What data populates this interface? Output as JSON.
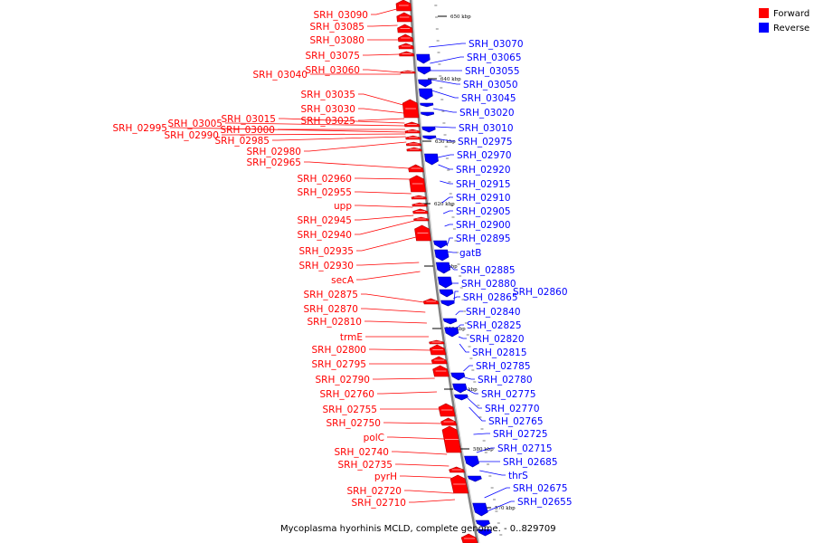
{
  "legend": [
    {
      "label": "Forward",
      "color": "#ff0000"
    },
    {
      "label": "Reverse",
      "color": "#0000ff"
    }
  ],
  "caption": "Mycoplasma hyorhinis MCLD, complete genome. - 0..829709",
  "forward_color": "#ff0000",
  "reverse_color": "#0000ff",
  "tick_labels": [
    "650 kbp",
    "640 kbp",
    "630 kbp",
    "620 kbp",
    "610 kbp",
    "600 kbp",
    "590 kbp",
    "580 kbp",
    "570 kbp"
  ],
  "forward_labels": [
    "SRH_03090",
    "SRH_03085",
    "SRH_03080",
    "SRH_03075",
    "SRH_03060",
    "SRH_03040",
    "SRH_03035",
    "SRH_03030",
    "SRH_03025",
    "SRH_03015",
    "SRH_03005",
    "SRH_03000",
    "SRH_02995",
    "SRH_02990",
    "SRH_02985",
    "SRH_02980",
    "SRH_02965",
    "SRH_02960",
    "SRH_02955",
    "upp",
    "SRH_02945",
    "SRH_02940",
    "SRH_02935",
    "SRH_02930",
    "secA",
    "SRH_02875",
    "SRH_02870",
    "SRH_02810",
    "trmE",
    "SRH_02800",
    "SRH_02795",
    "SRH_02790",
    "SRH_02760",
    "SRH_02755",
    "SRH_02750",
    "polC",
    "SRH_02740",
    "SRH_02735",
    "pyrH",
    "SRH_02720",
    "SRH_02710"
  ],
  "reverse_labels": [
    "SRH_03070",
    "SRH_03065",
    "SRH_03055",
    "SRH_03050",
    "SRH_03045",
    "SRH_03020",
    "SRH_03010",
    "SRH_02975",
    "SRH_02970",
    "SRH_02920",
    "SRH_02915",
    "SRH_02910",
    "SRH_02905",
    "SRH_02900",
    "SRH_02895",
    "gatB",
    "SRH_02885",
    "SRH_02880",
    "SRH_02865",
    "SRH_02860",
    "SRH_02840",
    "SRH_02825",
    "SRH_02820",
    "SRH_02815",
    "SRH_02785",
    "SRH_02780",
    "SRH_02775",
    "SRH_02770",
    "SRH_02765",
    "SRH_02725",
    "SRH_02715",
    "SRH_02685",
    "thrS",
    "SRH_02675",
    "SRH_02655"
  ]
}
